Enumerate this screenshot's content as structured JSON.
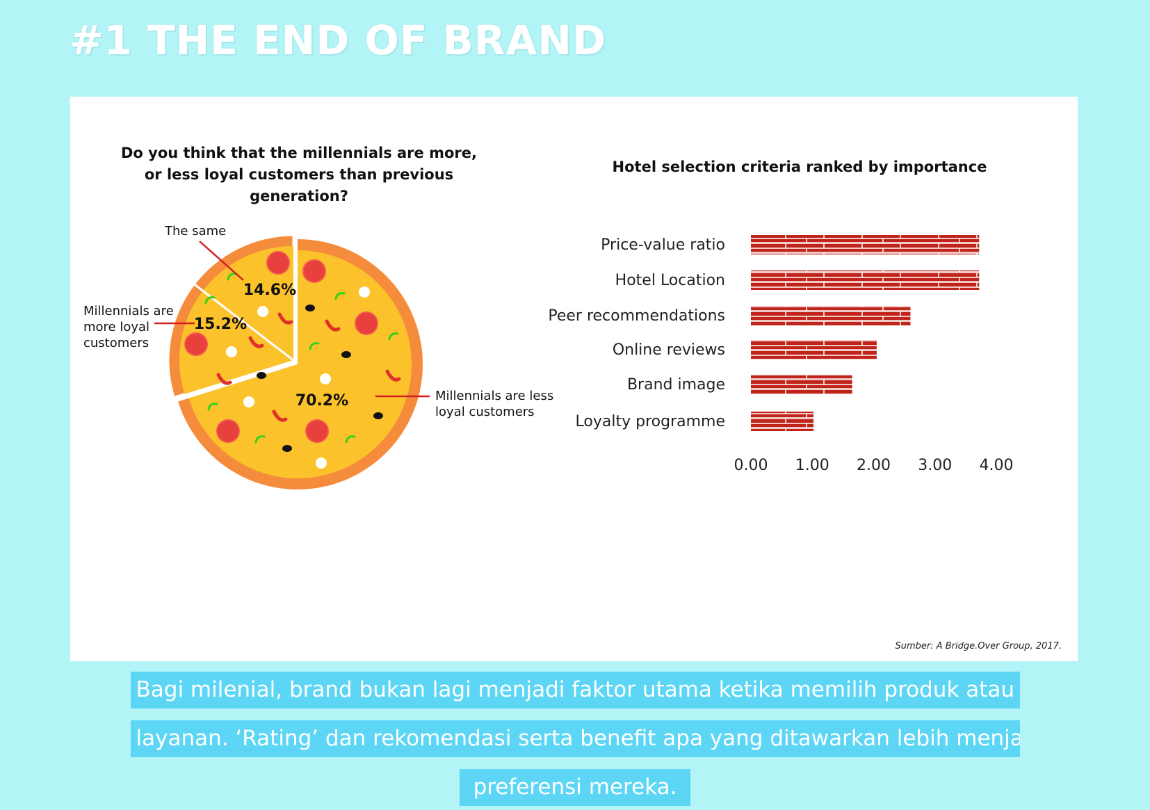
{
  "header": {
    "title": "#1 THE END OF BRAND"
  },
  "colors": {
    "background": "#b3f4f6",
    "crust": "#f58c3c",
    "cheese": "#fcc22b",
    "pepperoni": "#e8403c",
    "brick": "#c0231a",
    "caption_bg": "#5cd6f4",
    "leader": "#d31f1f"
  },
  "chart_data": [
    {
      "type": "pie",
      "title": "Do you think that the millennials are more, or less loyal customers than previous generation?",
      "slices": [
        {
          "label": "Millennials are less loyal customers",
          "value": 70.2,
          "value_label": "70.2%"
        },
        {
          "label": "Millennials are more loyal customers",
          "value": 15.2,
          "value_label": "15.2%"
        },
        {
          "label": "The same",
          "value": 14.6,
          "value_label": "14.6%"
        }
      ]
    },
    {
      "type": "bar",
      "orientation": "horizontal",
      "title": "Hotel selection criteria ranked by importance",
      "categories": [
        "Price-value ratio",
        "Hotel Location",
        "Peer recommendations",
        "Online reviews",
        "Brand image",
        "Loyalty programme"
      ],
      "values": [
        3.72,
        3.72,
        2.6,
        2.05,
        1.65,
        1.02
      ],
      "xlim": [
        0,
        4
      ],
      "x_ticks": [
        "0.00",
        "1.00",
        "2.00",
        "3.00",
        "4.00"
      ]
    }
  ],
  "footer": {
    "source": "Sumber: A Bridge.Over Group, 2017.",
    "caption_lines": [
      "Bagi milenial, brand bukan lagi menjadi faktor utama ketika memilih produk atau",
      "layanan. ‘Rating’ dan rekomendasi serta benefit apa yang ditawarkan lebih menjadi",
      "preferensi mereka."
    ]
  }
}
